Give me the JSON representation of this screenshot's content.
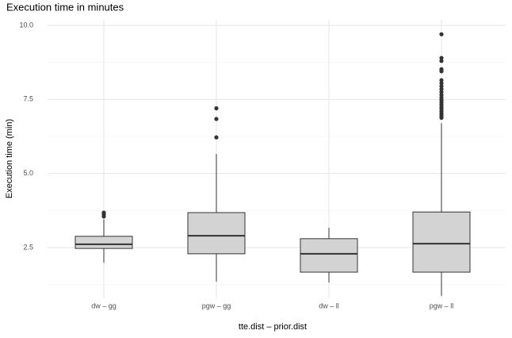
{
  "chart_data": {
    "type": "boxplot",
    "title": "Execution time in minutes",
    "x_label": "tte.dist – prior.dist",
    "y_label": "Execution time (min)",
    "categories": [
      "dw – gg",
      "pgw – gg",
      "dw – ll",
      "pgw – ll"
    ],
    "color": "#d3d3d3",
    "boxes": [
      {
        "min": 1.99,
        "q1": 2.47,
        "median": 2.61,
        "q3": 2.88,
        "max": 3.45,
        "outliers": [
          3.55,
          3.62,
          3.68
        ]
      },
      {
        "min": 1.35,
        "q1": 2.29,
        "median": 2.9,
        "q3": 3.68,
        "max": 5.66,
        "outliers": [
          6.22,
          6.84,
          7.2
        ]
      },
      {
        "min": 1.32,
        "q1": 1.67,
        "median": 2.29,
        "q3": 2.8,
        "max": 3.17,
        "outliers": []
      },
      {
        "min": 0.87,
        "q1": 1.67,
        "median": 2.63,
        "q3": 3.7,
        "max": 6.7,
        "outliers": [
          6.88,
          6.95,
          7.02,
          7.1,
          7.18,
          7.25,
          7.33,
          7.4,
          7.48,
          7.56,
          7.65,
          7.75,
          7.85,
          7.95,
          8.05,
          8.15,
          8.45,
          8.52,
          8.8,
          8.9,
          9.7
        ]
      }
    ],
    "ylim": [
      0.8,
      10.2
    ],
    "yticks": [
      {
        "value": 2.5,
        "label": "2.5"
      },
      {
        "value": 5,
        "label": "5.0"
      },
      {
        "value": 7.5,
        "label": "7.5"
      },
      {
        "value": 10,
        "label": "10.0"
      }
    ],
    "y_minor_ticks": [
      1.25,
      3.75,
      6.25,
      8.75
    ],
    "grid": true
  }
}
